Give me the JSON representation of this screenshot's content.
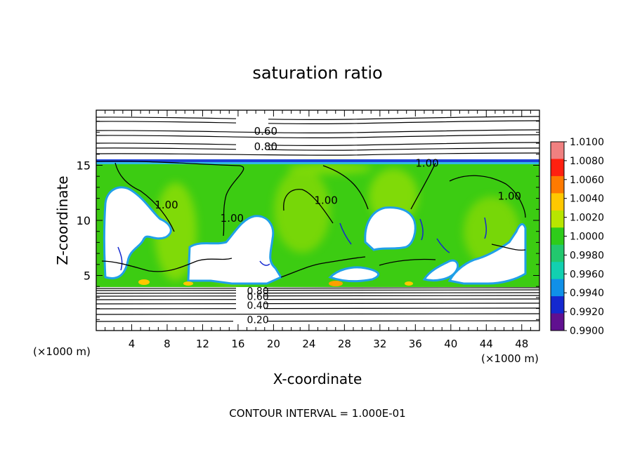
{
  "chart_data": {
    "type": "heatmap",
    "title": "saturation ratio",
    "xlabel": "X-coordinate",
    "ylabel": "Z-coordinate",
    "x_units_left": "(×1000 m)",
    "x_units_right": "(×1000 m)",
    "xlim": [
      0,
      50
    ],
    "ylim": [
      0,
      20
    ],
    "x_ticks": [
      4,
      8,
      12,
      16,
      20,
      24,
      28,
      32,
      36,
      40,
      44,
      48
    ],
    "y_ticks": [
      5,
      10,
      15
    ],
    "footer": "CONTOUR INTERVAL = 1.000E-01",
    "colorbar": {
      "ticks": [
        "1.0100",
        "1.0080",
        "1.0060",
        "1.0040",
        "1.0020",
        "1.0000",
        "0.9980",
        "0.9960",
        "0.9940",
        "0.9920",
        "0.9900"
      ],
      "colors": [
        "#f08080",
        "#ff2010",
        "#ff7a00",
        "#ffc800",
        "#b8e600",
        "#2ecc1a",
        "#22c86e",
        "#12d0b0",
        "#1090e8",
        "#1428d0",
        "#601090"
      ]
    },
    "contour_labels": [
      {
        "text": "0.60",
        "x": 17.8,
        "z": 18.1
      },
      {
        "text": "0.80",
        "x": 17.8,
        "z": 16.7
      },
      {
        "text": "1.00",
        "x": 36.0,
        "z": 15.2
      },
      {
        "text": "1.00",
        "x": 6.6,
        "z": 11.4
      },
      {
        "text": "1.00",
        "x": 14.0,
        "z": 10.2
      },
      {
        "text": "1.00",
        "x": 24.6,
        "z": 11.8
      },
      {
        "text": "1.00",
        "x": 45.3,
        "z": 12.2
      },
      {
        "text": "0.80",
        "x": 17.0,
        "z": 3.6
      },
      {
        "text": "0.60",
        "x": 17.0,
        "z": 3.1
      },
      {
        "text": "0.40",
        "x": 17.0,
        "z": 2.3
      },
      {
        "text": "0.20",
        "x": 17.0,
        "z": 1.0
      }
    ]
  }
}
